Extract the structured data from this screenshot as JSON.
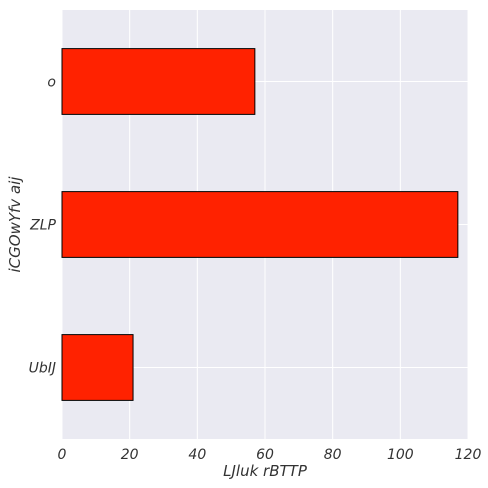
{
  "chart_data": {
    "type": "bar",
    "orientation": "horizontal",
    "categories": [
      "UbIJ",
      "ZLP",
      "o"
    ],
    "values": [
      21,
      117,
      57
    ],
    "xlabel": "LJluk rBTTP",
    "ylabel": "iCGOwYfv aij",
    "xlim": [
      0,
      120
    ],
    "xticks": [
      0,
      20,
      40,
      60,
      80,
      100,
      120
    ],
    "grid": true,
    "legend": "none",
    "colors": {
      "bar_fill": "#ff2200",
      "bar_edge": "#000000",
      "plot_background": "#eaeaf2",
      "grid": "#ffffff"
    }
  }
}
